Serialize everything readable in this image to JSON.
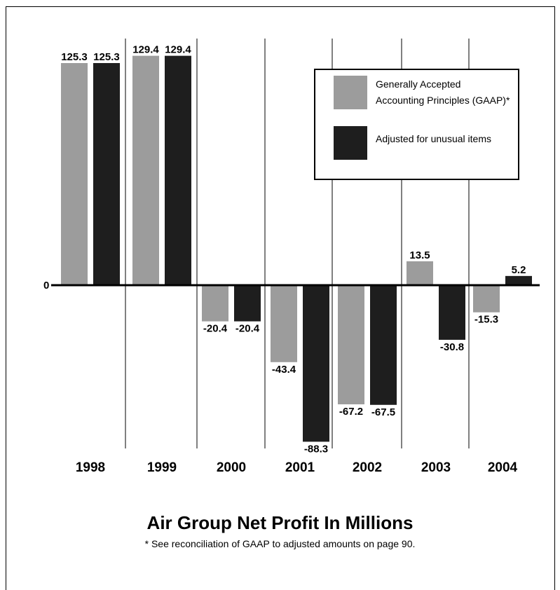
{
  "chart_data": {
    "type": "bar",
    "title": "Air Group Net Profit In Millions",
    "footnote": "* See reconciliation of GAAP to adjusted amounts on page 90.",
    "categories": [
      "1998",
      "1999",
      "2000",
      "2001",
      "2002",
      "2003",
      "2004"
    ],
    "series": [
      {
        "name": "Generally Accepted Accounting Principles (GAAP)*",
        "legend_lines": [
          "Generally Accepted",
          "Accounting Principles (GAAP)*"
        ],
        "color": "#9c9c9c",
        "values": [
          125.3,
          129.4,
          -20.4,
          -43.4,
          -67.2,
          13.5,
          -15.3
        ],
        "labels": [
          "125.3",
          "129.4",
          "-20.4",
          "-43.4",
          "-67.2",
          "13.5",
          "-15.3"
        ]
      },
      {
        "name": "Adjusted for unusual items",
        "legend_lines": [
          "Adjusted for unusual items"
        ],
        "color": "#1e1e1e",
        "values": [
          125.3,
          129.4,
          -20.4,
          -88.3,
          -67.5,
          -30.8,
          5.2
        ],
        "labels": [
          "125.3",
          "129.4",
          "-20.4",
          "-88.3",
          "-67.5",
          "-30.8",
          "5.2"
        ]
      }
    ],
    "zero_label": "0",
    "ylim": [
      -88.3,
      129.4
    ],
    "grid": "vertical separators between years",
    "legend": "top-right"
  }
}
